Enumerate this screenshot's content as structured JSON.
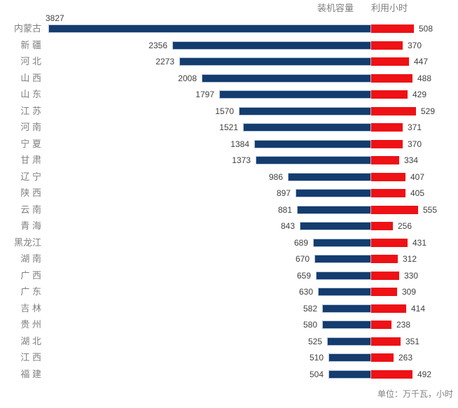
{
  "chart_data": {
    "type": "bar",
    "variant": "diverging-horizontal-tornado",
    "title": "",
    "categories": [
      "内蒙古",
      "新 疆",
      "河 北",
      "山 西",
      "山 东",
      "江 苏",
      "河 南",
      "宁 夏",
      "甘 肃",
      "辽 宁",
      "陕 西",
      "云 南",
      "青 海",
      "黑龙江",
      "湖 南",
      "广 西",
      "广 东",
      "吉 林",
      "贵 州",
      "湖 北",
      "江 西",
      "福 建"
    ],
    "series": [
      {
        "name": "装机容量",
        "side": "left",
        "color": "#143C6E",
        "values": [
          3827,
          2356,
          2273,
          2008,
          1797,
          1570,
          1521,
          1384,
          1373,
          986,
          897,
          881,
          843,
          689,
          670,
          659,
          630,
          582,
          580,
          525,
          510,
          504
        ]
      },
      {
        "name": "利用小时",
        "side": "right",
        "color": "#EE1115",
        "values": [
          508,
          370,
          447,
          488,
          429,
          529,
          371,
          370,
          334,
          407,
          405,
          555,
          256,
          431,
          312,
          330,
          309,
          414,
          238,
          351,
          263,
          492
        ]
      }
    ],
    "value_labels": "shown",
    "legend_position": "top-right",
    "grid": false,
    "unit_note": "单位：万千瓦，小时"
  },
  "colors": {
    "capacity_bar": "#143C6E",
    "capacity_bar_border": "#B5C5DB",
    "hours_bar": "#EE1115",
    "category_text": "#808080",
    "value_text": "#404040",
    "legend_text": "#808080",
    "note_text": "#808080"
  }
}
